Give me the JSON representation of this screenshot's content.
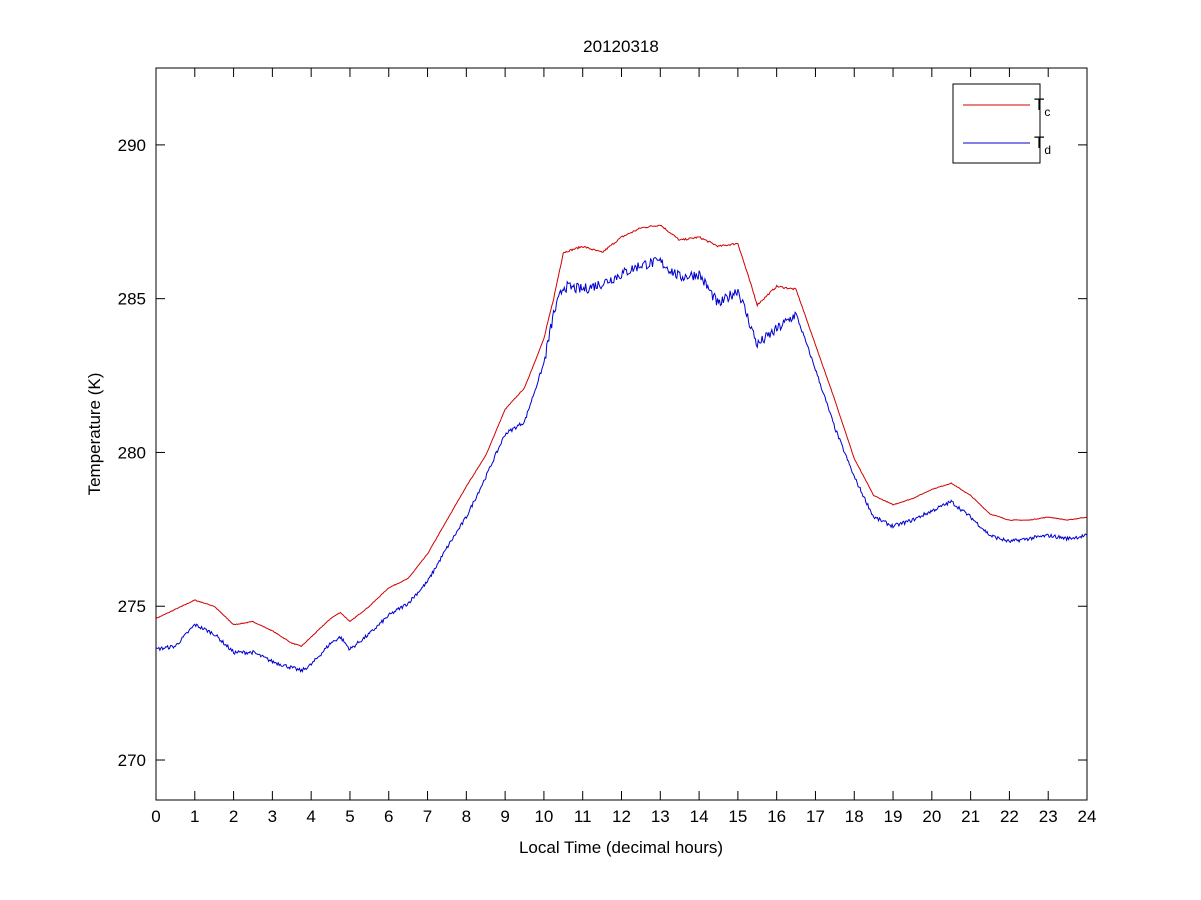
{
  "chart_data": {
    "type": "line",
    "title": "20120318",
    "xlabel": "Local Time (decimal hours)",
    "ylabel": "Temperature (K)",
    "xlim": [
      0,
      24
    ],
    "ylim": [
      268.7,
      292.5
    ],
    "xticks": [
      "0",
      "1",
      "2",
      "3",
      "4",
      "5",
      "6",
      "7",
      "8",
      "9",
      "10",
      "11",
      "12",
      "13",
      "14",
      "15",
      "16",
      "17",
      "18",
      "19",
      "20",
      "21",
      "22",
      "23",
      "24"
    ],
    "yticks": [
      "270",
      "275",
      "280",
      "285",
      "290"
    ],
    "grid": false,
    "legend_position": "top-right",
    "legend": [
      {
        "label": "T",
        "sub": "c",
        "color": "#d00000"
      },
      {
        "label": "T",
        "sub": "d",
        "color": "#0000d0"
      }
    ],
    "x": [
      0,
      0.5,
      1,
      1.5,
      2,
      2.5,
      3,
      3.5,
      3.75,
      4,
      4.5,
      4.75,
      5,
      5.5,
      6,
      6.5,
      7,
      7.5,
      8,
      8.5,
      9,
      9.5,
      10,
      10.25,
      10.5,
      11,
      11.5,
      12,
      12.5,
      13,
      13.5,
      14,
      14.5,
      15,
      15.5,
      16,
      16.5,
      17,
      17.5,
      18,
      18.5,
      19,
      19.5,
      20,
      20.5,
      21,
      21.5,
      22,
      22.5,
      23,
      23.5,
      24
    ],
    "series": [
      {
        "name": "Tc",
        "color": "#d00000",
        "values": [
          274.6,
          274.9,
          275.2,
          275.0,
          274.4,
          274.5,
          274.2,
          273.8,
          273.7,
          274.0,
          274.6,
          274.8,
          274.5,
          275.0,
          275.6,
          275.9,
          276.7,
          277.8,
          278.9,
          279.9,
          281.4,
          282.1,
          283.7,
          285.0,
          286.5,
          286.7,
          286.5,
          287.0,
          287.3,
          287.4,
          286.9,
          287.0,
          286.7,
          286.8,
          284.8,
          285.4,
          285.3,
          283.5,
          281.7,
          279.8,
          278.6,
          278.3,
          278.5,
          278.8,
          279.0,
          278.6,
          278.0,
          277.8,
          277.8,
          277.9,
          277.8,
          277.9
        ]
      },
      {
        "name": "Td",
        "color": "#0000d0",
        "values": [
          273.6,
          273.7,
          274.4,
          274.1,
          273.5,
          273.5,
          273.2,
          273.0,
          272.9,
          273.1,
          273.8,
          274.0,
          273.6,
          274.1,
          274.7,
          275.1,
          275.8,
          276.9,
          277.9,
          279.2,
          280.6,
          281.0,
          282.9,
          284.5,
          285.4,
          285.3,
          285.5,
          285.8,
          286.1,
          286.2,
          285.7,
          285.8,
          284.8,
          285.3,
          283.5,
          284.0,
          284.5,
          282.7,
          280.8,
          279.2,
          277.9,
          277.6,
          277.8,
          278.1,
          278.4,
          277.9,
          277.3,
          277.1,
          277.2,
          277.3,
          277.2,
          277.3
        ]
      }
    ]
  }
}
